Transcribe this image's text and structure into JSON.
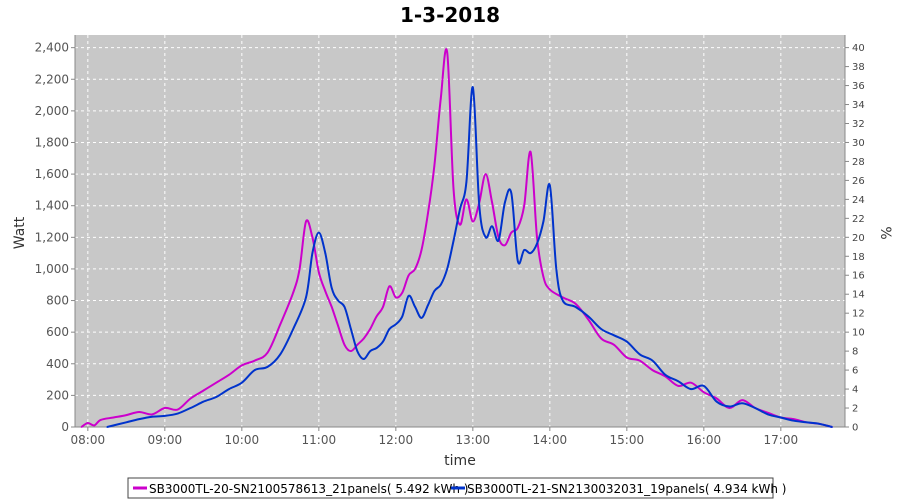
{
  "chart_data": {
    "type": "line",
    "title": "1-3-2018",
    "xlabel": "time",
    "ylabel": "Watt",
    "y2label": "%",
    "x_range": [
      "07:50",
      "17:50"
    ],
    "ylim": [
      0,
      2480
    ],
    "y2lim": [
      0,
      41.33
    ],
    "y_ticks": [
      0,
      200,
      400,
      600,
      800,
      1000,
      1200,
      1400,
      1600,
      1800,
      2000,
      2200,
      2400
    ],
    "y_tick_labels": [
      "0",
      "200",
      "400",
      "600",
      "800",
      "1,000",
      "1,200",
      "1,400",
      "1,600",
      "1,800",
      "2,000",
      "2,200",
      "2,400"
    ],
    "y2_ticks": [
      0,
      2,
      4,
      6,
      8,
      10,
      12,
      14,
      16,
      18,
      20,
      22,
      24,
      26,
      28,
      30,
      32,
      34,
      36,
      38,
      40
    ],
    "x_ticks": [
      "08:00",
      "09:00",
      "10:00",
      "11:00",
      "12:00",
      "13:00",
      "14:00",
      "15:00",
      "16:00",
      "17:00"
    ],
    "grid": true,
    "legend_position": "bottom",
    "series": [
      {
        "name": "SB3000TL-20-SN2100578613_21panels( 5.492 kWh )",
        "color": "#cc00cc",
        "points": [
          [
            "07:55",
            0
          ],
          [
            "08:00",
            25
          ],
          [
            "08:05",
            10
          ],
          [
            "08:10",
            45
          ],
          [
            "08:20",
            60
          ],
          [
            "08:30",
            75
          ],
          [
            "08:40",
            95
          ],
          [
            "08:50",
            80
          ],
          [
            "09:00",
            120
          ],
          [
            "09:10",
            110
          ],
          [
            "09:20",
            180
          ],
          [
            "09:30",
            230
          ],
          [
            "09:40",
            280
          ],
          [
            "09:50",
            330
          ],
          [
            "10:00",
            390
          ],
          [
            "10:10",
            420
          ],
          [
            "10:20",
            470
          ],
          [
            "10:30",
            650
          ],
          [
            "10:40",
            850
          ],
          [
            "10:45",
            1000
          ],
          [
            "10:50",
            1300
          ],
          [
            "10:55",
            1200
          ],
          [
            "11:00",
            980
          ],
          [
            "11:05",
            860
          ],
          [
            "11:10",
            760
          ],
          [
            "11:15",
            640
          ],
          [
            "11:20",
            520
          ],
          [
            "11:25",
            480
          ],
          [
            "11:30",
            520
          ],
          [
            "11:35",
            560
          ],
          [
            "11:40",
            620
          ],
          [
            "11:45",
            700
          ],
          [
            "11:50",
            760
          ],
          [
            "11:55",
            890
          ],
          [
            "12:00",
            820
          ],
          [
            "12:05",
            850
          ],
          [
            "12:10",
            960
          ],
          [
            "12:15",
            1000
          ],
          [
            "12:20",
            1120
          ],
          [
            "12:25",
            1350
          ],
          [
            "12:30",
            1650
          ],
          [
            "12:35",
            2080
          ],
          [
            "12:40",
            2370
          ],
          [
            "12:45",
            1500
          ],
          [
            "12:50",
            1280
          ],
          [
            "12:55",
            1440
          ],
          [
            "13:00",
            1300
          ],
          [
            "13:05",
            1420
          ],
          [
            "13:10",
            1600
          ],
          [
            "13:15",
            1420
          ],
          [
            "13:20",
            1200
          ],
          [
            "13:25",
            1150
          ],
          [
            "13:30",
            1230
          ],
          [
            "13:35",
            1260
          ],
          [
            "13:40",
            1400
          ],
          [
            "13:45",
            1740
          ],
          [
            "13:50",
            1200
          ],
          [
            "13:55",
            950
          ],
          [
            "14:00",
            870
          ],
          [
            "14:10",
            820
          ],
          [
            "14:20",
            780
          ],
          [
            "14:30",
            680
          ],
          [
            "14:40",
            560
          ],
          [
            "14:50",
            520
          ],
          [
            "15:00",
            440
          ],
          [
            "15:10",
            420
          ],
          [
            "15:20",
            360
          ],
          [
            "15:30",
            320
          ],
          [
            "15:40",
            260
          ],
          [
            "15:50",
            280
          ],
          [
            "16:00",
            220
          ],
          [
            "16:10",
            180
          ],
          [
            "16:20",
            120
          ],
          [
            "16:30",
            170
          ],
          [
            "16:40",
            120
          ],
          [
            "16:50",
            90
          ],
          [
            "17:00",
            60
          ],
          [
            "17:10",
            50
          ],
          [
            "17:20",
            30
          ],
          [
            "17:30",
            20
          ],
          [
            "17:40",
            0
          ]
        ]
      },
      {
        "name": "SB3000TL-21-SN2130032031_19panels( 4.934 kWh )",
        "color": "#0033cc",
        "points": [
          [
            "08:15",
            0
          ],
          [
            "08:30",
            30
          ],
          [
            "08:40",
            50
          ],
          [
            "08:50",
            65
          ],
          [
            "09:00",
            70
          ],
          [
            "09:10",
            85
          ],
          [
            "09:20",
            120
          ],
          [
            "09:30",
            160
          ],
          [
            "09:40",
            190
          ],
          [
            "09:50",
            240
          ],
          [
            "10:00",
            280
          ],
          [
            "10:10",
            360
          ],
          [
            "10:20",
            380
          ],
          [
            "10:30",
            460
          ],
          [
            "10:40",
            620
          ],
          [
            "10:50",
            820
          ],
          [
            "10:55",
            1100
          ],
          [
            "11:00",
            1230
          ],
          [
            "11:05",
            1100
          ],
          [
            "11:10",
            880
          ],
          [
            "11:15",
            800
          ],
          [
            "11:20",
            760
          ],
          [
            "11:25",
            620
          ],
          [
            "11:30",
            480
          ],
          [
            "11:35",
            430
          ],
          [
            "11:40",
            480
          ],
          [
            "11:45",
            500
          ],
          [
            "11:50",
            540
          ],
          [
            "11:55",
            620
          ],
          [
            "12:00",
            650
          ],
          [
            "12:05",
            700
          ],
          [
            "12:10",
            830
          ],
          [
            "12:15",
            760
          ],
          [
            "12:20",
            690
          ],
          [
            "12:25",
            770
          ],
          [
            "12:30",
            860
          ],
          [
            "12:35",
            900
          ],
          [
            "12:40",
            1000
          ],
          [
            "12:45",
            1180
          ],
          [
            "12:50",
            1380
          ],
          [
            "12:55",
            1550
          ],
          [
            "13:00",
            2150
          ],
          [
            "13:05",
            1400
          ],
          [
            "13:10",
            1200
          ],
          [
            "13:15",
            1270
          ],
          [
            "13:20",
            1180
          ],
          [
            "13:25",
            1420
          ],
          [
            "13:30",
            1480
          ],
          [
            "13:35",
            1050
          ],
          [
            "13:40",
            1120
          ],
          [
            "13:45",
            1100
          ],
          [
            "13:50",
            1160
          ],
          [
            "13:55",
            1300
          ],
          [
            "14:00",
            1530
          ],
          [
            "14:05",
            1000
          ],
          [
            "14:10",
            800
          ],
          [
            "14:20",
            760
          ],
          [
            "14:30",
            700
          ],
          [
            "14:40",
            620
          ],
          [
            "14:50",
            580
          ],
          [
            "15:00",
            540
          ],
          [
            "15:10",
            460
          ],
          [
            "15:20",
            420
          ],
          [
            "15:30",
            330
          ],
          [
            "15:40",
            290
          ],
          [
            "15:50",
            240
          ],
          [
            "16:00",
            260
          ],
          [
            "16:10",
            160
          ],
          [
            "16:20",
            130
          ],
          [
            "16:30",
            150
          ],
          [
            "16:40",
            120
          ],
          [
            "16:50",
            80
          ],
          [
            "17:00",
            60
          ],
          [
            "17:10",
            40
          ],
          [
            "17:20",
            30
          ],
          [
            "17:30",
            20
          ],
          [
            "17:40",
            0
          ]
        ]
      }
    ]
  }
}
